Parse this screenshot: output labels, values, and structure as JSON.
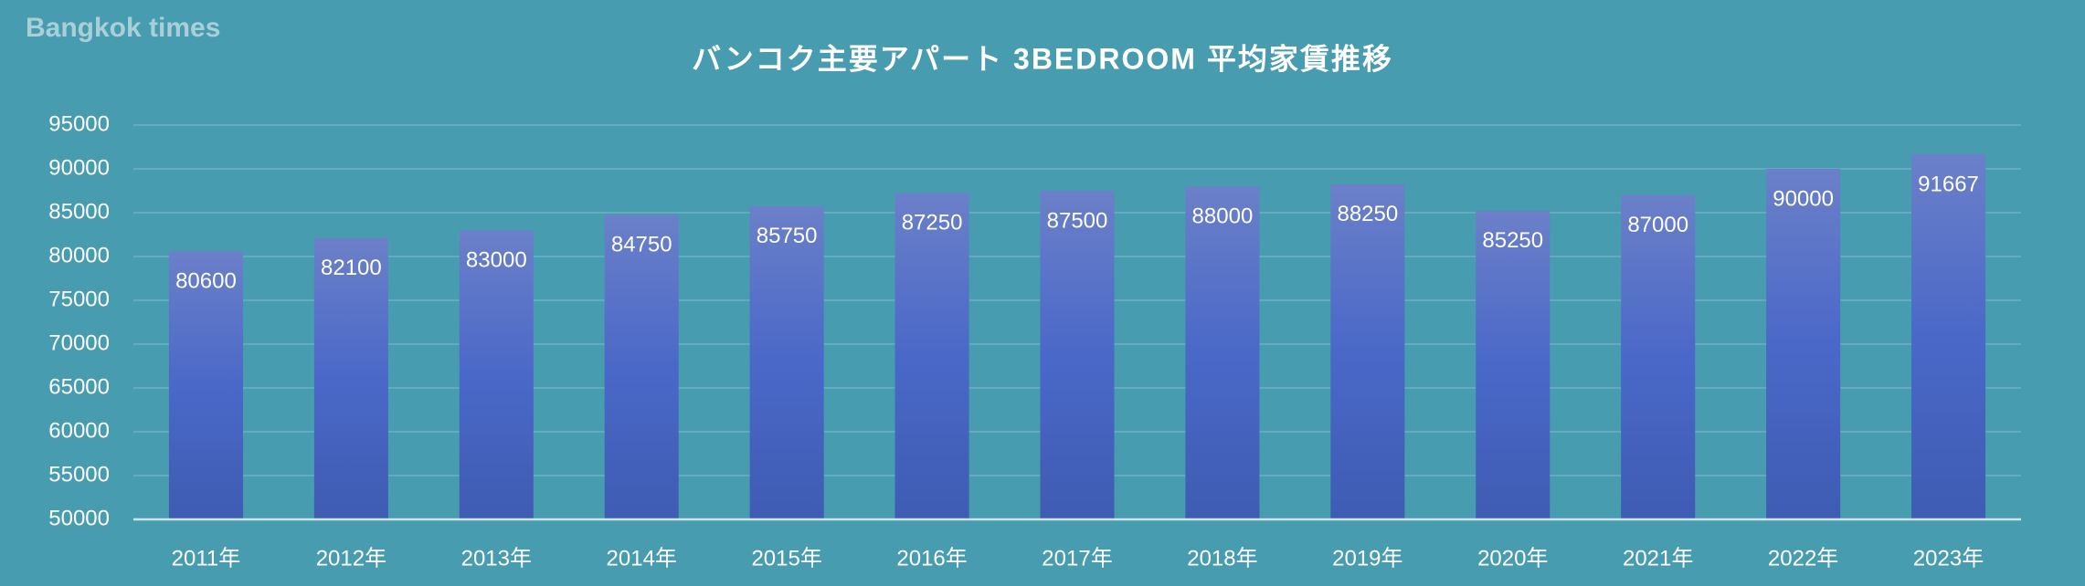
{
  "watermark": "Bangkok times",
  "chart_data": {
    "type": "bar",
    "title": "バンコク主要アパート 3BEDROOM 平均家賃推移",
    "categories": [
      "2011年",
      "2012年",
      "2013年",
      "2014年",
      "2015年",
      "2016年",
      "2017年",
      "2018年",
      "2019年",
      "2020年",
      "2021年",
      "2022年",
      "2023年"
    ],
    "values": [
      80600,
      82100,
      83000,
      84750,
      85750,
      87250,
      87500,
      88000,
      88250,
      85250,
      87000,
      90000,
      91667
    ],
    "color": "#4a68c8",
    "ylim": [
      50000,
      95000
    ],
    "yticks": [
      50000,
      55000,
      60000,
      65000,
      70000,
      75000,
      80000,
      85000,
      90000,
      95000
    ],
    "grid": true
  }
}
